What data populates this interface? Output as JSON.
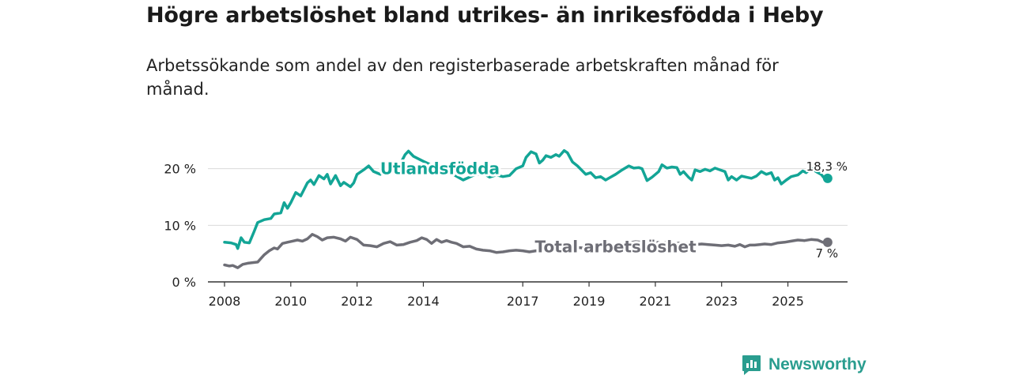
{
  "header": {
    "title": "Högre arbetslöshet bland utrikes- än inrikesfödda i Heby",
    "subtitle": "Arbetssökande som andel av den registerbaserade arbetskraften månad för månad."
  },
  "brand": {
    "name": "Newsworthy",
    "color": "#2a9d8f"
  },
  "chart_data": {
    "type": "line",
    "title": "Högre arbetslöshet bland utrikes- än inrikesfödda i Heby",
    "ylabel": "",
    "xlabel": "",
    "ylim": [
      0,
      24
    ],
    "xlim": [
      2007.5,
      2026.8
    ],
    "y_ticks": [
      0,
      10,
      20
    ],
    "y_tick_labels": [
      "0 %",
      "10 %",
      "20 %"
    ],
    "x_ticks": [
      2008,
      2010,
      2012,
      2014,
      2017,
      2019,
      2021,
      2023,
      2025
    ],
    "x_tick_labels": [
      "2008",
      "2010",
      "2012",
      "2014",
      "2017",
      "2019",
      "2021",
      "2023",
      "2025"
    ],
    "grid": true,
    "series": [
      {
        "name": "Utlandsfödda",
        "color": "#13a596",
        "end_label": "18,3 %",
        "points": [
          [
            2008.0,
            7.0
          ],
          [
            2008.2,
            6.9
          ],
          [
            2008.35,
            6.6
          ],
          [
            2008.4,
            5.9
          ],
          [
            2008.5,
            7.8
          ],
          [
            2008.6,
            7.0
          ],
          [
            2008.75,
            6.9
          ],
          [
            2008.9,
            9.0
          ],
          [
            2009.0,
            10.5
          ],
          [
            2009.2,
            11.0
          ],
          [
            2009.4,
            11.2
          ],
          [
            2009.5,
            12.0
          ],
          [
            2009.7,
            12.2
          ],
          [
            2009.8,
            14.0
          ],
          [
            2009.9,
            13.0
          ],
          [
            2010.0,
            14.0
          ],
          [
            2010.15,
            15.8
          ],
          [
            2010.3,
            15.2
          ],
          [
            2010.5,
            17.5
          ],
          [
            2010.6,
            18.0
          ],
          [
            2010.7,
            17.2
          ],
          [
            2010.85,
            18.8
          ],
          [
            2011.0,
            18.2
          ],
          [
            2011.1,
            19.0
          ],
          [
            2011.2,
            17.3
          ],
          [
            2011.35,
            18.8
          ],
          [
            2011.5,
            17.0
          ],
          [
            2011.6,
            17.6
          ],
          [
            2011.8,
            16.8
          ],
          [
            2011.9,
            17.5
          ],
          [
            2012.0,
            19.0
          ],
          [
            2012.2,
            19.8
          ],
          [
            2012.35,
            20.5
          ],
          [
            2012.5,
            19.5
          ],
          [
            2012.7,
            19.0
          ],
          [
            2012.9,
            20.0
          ],
          [
            2013.1,
            21.0
          ],
          [
            2013.3,
            20.8
          ],
          [
            2013.45,
            22.5
          ],
          [
            2013.55,
            23.1
          ],
          [
            2013.7,
            22.2
          ],
          [
            2014.0,
            21.3
          ],
          [
            2014.3,
            20.5
          ],
          [
            2014.6,
            19.5
          ],
          [
            2014.9,
            19.0
          ],
          [
            2015.2,
            18.0
          ],
          [
            2015.5,
            18.8
          ],
          [
            2015.8,
            19.2
          ],
          [
            2016.0,
            18.5
          ],
          [
            2016.2,
            18.9
          ],
          [
            2016.4,
            18.6
          ],
          [
            2016.6,
            18.8
          ],
          [
            2016.8,
            20.0
          ],
          [
            2017.0,
            20.5
          ],
          [
            2017.1,
            22.0
          ],
          [
            2017.25,
            23.0
          ],
          [
            2017.4,
            22.6
          ],
          [
            2017.5,
            21.0
          ],
          [
            2017.6,
            21.5
          ],
          [
            2017.7,
            22.3
          ],
          [
            2017.85,
            22.0
          ],
          [
            2018.0,
            22.5
          ],
          [
            2018.1,
            22.2
          ],
          [
            2018.25,
            23.2
          ],
          [
            2018.35,
            22.8
          ],
          [
            2018.5,
            21.2
          ],
          [
            2018.65,
            20.5
          ],
          [
            2018.8,
            19.6
          ],
          [
            2018.9,
            19.0
          ],
          [
            2019.05,
            19.3
          ],
          [
            2019.2,
            18.4
          ],
          [
            2019.35,
            18.6
          ],
          [
            2019.5,
            18.0
          ],
          [
            2019.65,
            18.5
          ],
          [
            2019.8,
            19.0
          ],
          [
            2020.0,
            19.8
          ],
          [
            2020.2,
            20.5
          ],
          [
            2020.35,
            20.1
          ],
          [
            2020.5,
            20.2
          ],
          [
            2020.6,
            20.0
          ],
          [
            2020.75,
            17.9
          ],
          [
            2020.9,
            18.5
          ],
          [
            2021.1,
            19.5
          ],
          [
            2021.2,
            20.7
          ],
          [
            2021.35,
            20.1
          ],
          [
            2021.5,
            20.3
          ],
          [
            2021.65,
            20.2
          ],
          [
            2021.75,
            19.0
          ],
          [
            2021.85,
            19.5
          ],
          [
            2022.0,
            18.5
          ],
          [
            2022.1,
            18.0
          ],
          [
            2022.2,
            19.8
          ],
          [
            2022.35,
            19.5
          ],
          [
            2022.5,
            19.9
          ],
          [
            2022.65,
            19.6
          ],
          [
            2022.8,
            20.1
          ],
          [
            2022.95,
            19.8
          ],
          [
            2023.1,
            19.5
          ],
          [
            2023.2,
            18.0
          ],
          [
            2023.3,
            18.6
          ],
          [
            2023.45,
            18.0
          ],
          [
            2023.6,
            18.7
          ],
          [
            2023.75,
            18.5
          ],
          [
            2023.9,
            18.3
          ],
          [
            2024.05,
            18.7
          ],
          [
            2024.2,
            19.5
          ],
          [
            2024.35,
            19.0
          ],
          [
            2024.5,
            19.3
          ],
          [
            2024.6,
            18.0
          ],
          [
            2024.7,
            18.4
          ],
          [
            2024.8,
            17.3
          ],
          [
            2024.95,
            18.0
          ],
          [
            2025.1,
            18.6
          ],
          [
            2025.3,
            18.9
          ],
          [
            2025.45,
            19.6
          ],
          [
            2025.55,
            19.3
          ],
          [
            2025.7,
            20.1
          ],
          [
            2025.85,
            19.5
          ],
          [
            2026.0,
            19.0
          ],
          [
            2026.1,
            18.3
          ],
          [
            2026.2,
            18.3
          ]
        ]
      },
      {
        "name": "Total arbetslöshet",
        "color": "#6e6e76",
        "end_label": "7 %",
        "points": [
          [
            2008.0,
            3.0
          ],
          [
            2008.15,
            2.8
          ],
          [
            2008.25,
            2.9
          ],
          [
            2008.4,
            2.5
          ],
          [
            2008.55,
            3.1
          ],
          [
            2008.7,
            3.3
          ],
          [
            2008.85,
            3.4
          ],
          [
            2009.0,
            3.5
          ],
          [
            2009.2,
            4.8
          ],
          [
            2009.35,
            5.5
          ],
          [
            2009.5,
            6.0
          ],
          [
            2009.6,
            5.8
          ],
          [
            2009.75,
            6.8
          ],
          [
            2009.9,
            7.0
          ],
          [
            2010.05,
            7.2
          ],
          [
            2010.2,
            7.4
          ],
          [
            2010.35,
            7.2
          ],
          [
            2010.5,
            7.6
          ],
          [
            2010.65,
            8.4
          ],
          [
            2010.8,
            8.0
          ],
          [
            2010.95,
            7.4
          ],
          [
            2011.1,
            7.8
          ],
          [
            2011.3,
            7.9
          ],
          [
            2011.5,
            7.6
          ],
          [
            2011.65,
            7.2
          ],
          [
            2011.8,
            7.9
          ],
          [
            2012.0,
            7.5
          ],
          [
            2012.2,
            6.5
          ],
          [
            2012.4,
            6.4
          ],
          [
            2012.6,
            6.2
          ],
          [
            2012.8,
            6.8
          ],
          [
            2013.0,
            7.1
          ],
          [
            2013.2,
            6.5
          ],
          [
            2013.4,
            6.6
          ],
          [
            2013.6,
            7.0
          ],
          [
            2013.8,
            7.3
          ],
          [
            2013.95,
            7.8
          ],
          [
            2014.1,
            7.5
          ],
          [
            2014.25,
            6.8
          ],
          [
            2014.4,
            7.5
          ],
          [
            2014.55,
            7.0
          ],
          [
            2014.7,
            7.3
          ],
          [
            2014.85,
            7.0
          ],
          [
            2015.0,
            6.8
          ],
          [
            2015.2,
            6.2
          ],
          [
            2015.4,
            6.3
          ],
          [
            2015.6,
            5.8
          ],
          [
            2015.8,
            5.6
          ],
          [
            2016.0,
            5.5
          ],
          [
            2016.2,
            5.2
          ],
          [
            2016.4,
            5.3
          ],
          [
            2016.6,
            5.5
          ],
          [
            2016.8,
            5.6
          ],
          [
            2017.0,
            5.5
          ],
          [
            2017.2,
            5.3
          ],
          [
            2017.4,
            5.5
          ],
          [
            2017.6,
            5.4
          ],
          [
            2017.8,
            5.6
          ],
          [
            2018.0,
            5.5
          ],
          [
            2018.2,
            5.7
          ],
          [
            2018.4,
            5.9
          ],
          [
            2018.6,
            6.1
          ],
          [
            2018.8,
            6.0
          ],
          [
            2019.0,
            6.2
          ],
          [
            2019.2,
            6.4
          ],
          [
            2019.4,
            6.3
          ],
          [
            2019.6,
            6.6
          ],
          [
            2019.8,
            6.5
          ],
          [
            2020.0,
            6.7
          ],
          [
            2020.2,
            6.9
          ],
          [
            2020.4,
            7.1
          ],
          [
            2020.6,
            7.0
          ],
          [
            2020.8,
            6.8
          ],
          [
            2021.0,
            7.0
          ],
          [
            2021.2,
            6.9
          ],
          [
            2021.4,
            7.0
          ],
          [
            2021.6,
            6.8
          ],
          [
            2021.8,
            6.9
          ],
          [
            2022.0,
            6.8
          ],
          [
            2022.2,
            6.6
          ],
          [
            2022.4,
            6.7
          ],
          [
            2022.6,
            6.6
          ],
          [
            2022.8,
            6.5
          ],
          [
            2023.0,
            6.4
          ],
          [
            2023.2,
            6.5
          ],
          [
            2023.4,
            6.3
          ],
          [
            2023.55,
            6.6
          ],
          [
            2023.7,
            6.2
          ],
          [
            2023.85,
            6.5
          ],
          [
            2024.0,
            6.5
          ],
          [
            2024.15,
            6.6
          ],
          [
            2024.3,
            6.7
          ],
          [
            2024.5,
            6.6
          ],
          [
            2024.7,
            6.9
          ],
          [
            2024.9,
            7.0
          ],
          [
            2025.1,
            7.2
          ],
          [
            2025.3,
            7.4
          ],
          [
            2025.5,
            7.3
          ],
          [
            2025.7,
            7.5
          ],
          [
            2025.9,
            7.4
          ],
          [
            2026.05,
            7.0
          ],
          [
            2026.2,
            7.0
          ]
        ]
      }
    ],
    "annotations": [
      {
        "text": "Utlandsfödda",
        "series": "Utlandsfödda",
        "x": 2014.5,
        "y": 20.0
      },
      {
        "text": "Total arbetslöshet",
        "series": "Total arbetslöshet",
        "x": 2019.8,
        "y": 6.2
      }
    ]
  }
}
